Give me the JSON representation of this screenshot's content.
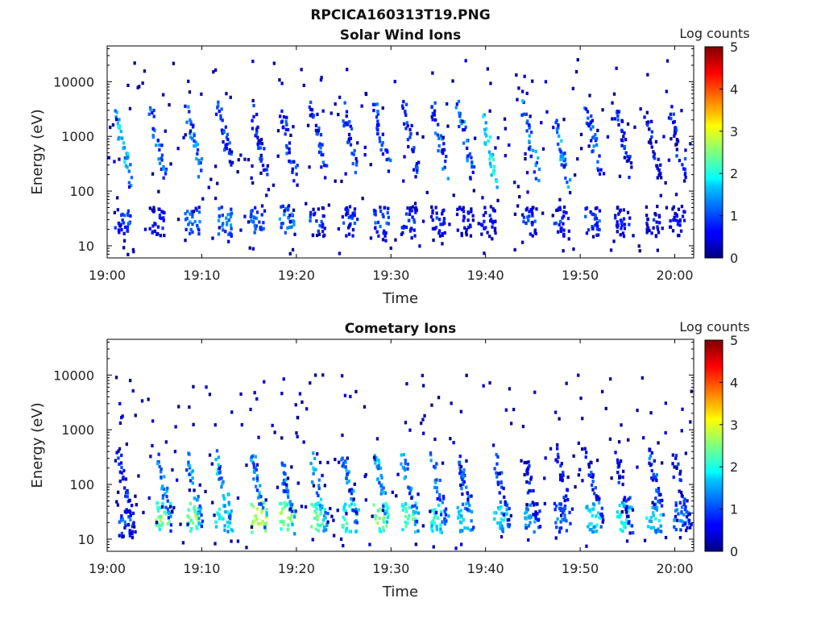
{
  "figure_title": "RPCICA160313T19.PNG",
  "chart_data": [
    {
      "type": "heatmap",
      "title": "Solar Wind Ions",
      "xlabel": "Time",
      "ylabel": "Energy (eV)",
      "y_scale": "log",
      "ylim": [
        6,
        45000
      ],
      "xlim": [
        "19:00",
        "20:02"
      ],
      "x_ticks": [
        "19:00",
        "19:10",
        "19:20",
        "19:30",
        "19:40",
        "19:50",
        "20:00"
      ],
      "y_ticks": [
        "10",
        "100",
        "1000",
        "10000"
      ],
      "colorbar": {
        "label": "Log counts",
        "range": [
          0,
          5
        ],
        "ticks": [
          "0",
          "1",
          "2",
          "3",
          "4",
          "5"
        ],
        "colormap": "jet"
      },
      "bursts": [
        {
          "t": 1.2,
          "low_e": 28,
          "low_v": 1.3,
          "high_e": 900,
          "high_v": 1.9
        },
        {
          "t": 4.8,
          "low_e": 28,
          "low_v": 1.2,
          "high_e": 1100,
          "high_v": 1.4
        },
        {
          "t": 8.6,
          "low_e": 28,
          "low_v": 1.6,
          "high_e": 1300,
          "high_v": 1.5
        },
        {
          "t": 12.0,
          "low_e": 28,
          "low_v": 1.7,
          "high_e": 1300,
          "high_v": 1.2
        },
        {
          "t": 15.5,
          "low_e": 30,
          "low_v": 1.5,
          "high_e": 1100,
          "high_v": 1.1
        },
        {
          "t": 18.6,
          "low_e": 30,
          "low_v": 1.6,
          "high_e": 1100,
          "high_v": 1.2
        },
        {
          "t": 21.8,
          "low_e": 28,
          "low_v": 1.2,
          "high_e": 1300,
          "high_v": 1.2
        },
        {
          "t": 25.2,
          "low_e": 28,
          "low_v": 1.3,
          "high_e": 1200,
          "high_v": 1.1
        },
        {
          "t": 28.5,
          "low_e": 28,
          "low_v": 1.4,
          "high_e": 1300,
          "high_v": 1.3
        },
        {
          "t": 31.5,
          "low_e": 28,
          "low_v": 1.3,
          "high_e": 1400,
          "high_v": 1.2
        },
        {
          "t": 34.6,
          "low_e": 28,
          "low_v": 1.2,
          "high_e": 1300,
          "high_v": 1.4
        },
        {
          "t": 37.3,
          "low_e": 28,
          "low_v": 1.1,
          "high_e": 1200,
          "high_v": 1.5
        },
        {
          "t": 39.8,
          "low_e": 28,
          "low_v": 1.1,
          "high_e": 900,
          "high_v": 2.2
        },
        {
          "t": 44.2,
          "low_e": 28,
          "low_v": 1.2,
          "high_e": 1100,
          "high_v": 1.6
        },
        {
          "t": 47.6,
          "low_e": 28,
          "low_v": 1.2,
          "high_e": 700,
          "high_v": 1.7
        },
        {
          "t": 50.9,
          "low_e": 28,
          "low_v": 1.3,
          "high_e": 1100,
          "high_v": 1.4
        },
        {
          "t": 54.0,
          "low_e": 28,
          "low_v": 1.1,
          "high_e": 1400,
          "high_v": 1.1
        },
        {
          "t": 57.2,
          "low_e": 28,
          "low_v": 1.0,
          "high_e": 900,
          "high_v": 1.0
        },
        {
          "t": 59.8,
          "low_e": 28,
          "low_v": 1.0,
          "high_e": 1000,
          "high_v": 1.1
        }
      ]
    },
    {
      "type": "heatmap",
      "title": "Cometary Ions",
      "xlabel": "Time",
      "ylabel": "Energy (eV)",
      "y_scale": "log",
      "ylim": [
        6,
        45000
      ],
      "xlim": [
        "19:00",
        "20:02"
      ],
      "x_ticks": [
        "19:00",
        "19:10",
        "19:20",
        "19:30",
        "19:40",
        "19:50",
        "20:00"
      ],
      "y_ticks": [
        "10",
        "100",
        "1000",
        "10000"
      ],
      "colorbar": {
        "label": "Log counts",
        "range": [
          0,
          5
        ],
        "ticks": [
          "0",
          "1",
          "2",
          "3",
          "4",
          "5"
        ],
        "colormap": "jet"
      },
      "bursts": [
        {
          "t": 1.5,
          "low_e": 20,
          "low_v": 1.4,
          "high_e": 100,
          "high_v": 1.1
        },
        {
          "t": 5.5,
          "low_e": 25,
          "low_v": 2.8,
          "high_e": 100,
          "high_v": 1.6
        },
        {
          "t": 8.8,
          "low_e": 25,
          "low_v": 2.9,
          "high_e": 100,
          "high_v": 1.7
        },
        {
          "t": 11.8,
          "low_e": 25,
          "low_v": 2.3,
          "high_e": 110,
          "high_v": 1.8
        },
        {
          "t": 15.6,
          "low_e": 25,
          "low_v": 3.2,
          "high_e": 100,
          "high_v": 1.7
        },
        {
          "t": 18.6,
          "low_e": 25,
          "low_v": 2.9,
          "high_e": 90,
          "high_v": 1.6
        },
        {
          "t": 21.8,
          "low_e": 25,
          "low_v": 2.8,
          "high_e": 110,
          "high_v": 1.8
        },
        {
          "t": 25.2,
          "low_e": 25,
          "low_v": 2.6,
          "high_e": 120,
          "high_v": 1.7
        },
        {
          "t": 28.5,
          "low_e": 25,
          "low_v": 2.9,
          "high_e": 130,
          "high_v": 1.8
        },
        {
          "t": 31.5,
          "low_e": 25,
          "low_v": 2.7,
          "high_e": 110,
          "high_v": 1.7
        },
        {
          "t": 34.6,
          "low_e": 25,
          "low_v": 2.4,
          "high_e": 100,
          "high_v": 1.5
        },
        {
          "t": 37.4,
          "low_e": 25,
          "low_v": 2.1,
          "high_e": 110,
          "high_v": 1.4
        },
        {
          "t": 41.2,
          "low_e": 25,
          "low_v": 2.2,
          "high_e": 100,
          "high_v": 1.2
        },
        {
          "t": 44.4,
          "low_e": 25,
          "low_v": 1.8,
          "high_e": 90,
          "high_v": 1.0
        },
        {
          "t": 47.6,
          "low_e": 25,
          "low_v": 1.6,
          "high_e": 140,
          "high_v": 1.1
        },
        {
          "t": 51.0,
          "low_e": 25,
          "low_v": 2.3,
          "high_e": 120,
          "high_v": 1.2
        },
        {
          "t": 54.2,
          "low_e": 25,
          "low_v": 2.4,
          "high_e": 100,
          "high_v": 1.1
        },
        {
          "t": 57.3,
          "low_e": 25,
          "low_v": 2.1,
          "high_e": 200,
          "high_v": 1.4
        },
        {
          "t": 60.2,
          "low_e": 25,
          "low_v": 1.7,
          "high_e": 100,
          "high_v": 1.0
        }
      ]
    }
  ]
}
